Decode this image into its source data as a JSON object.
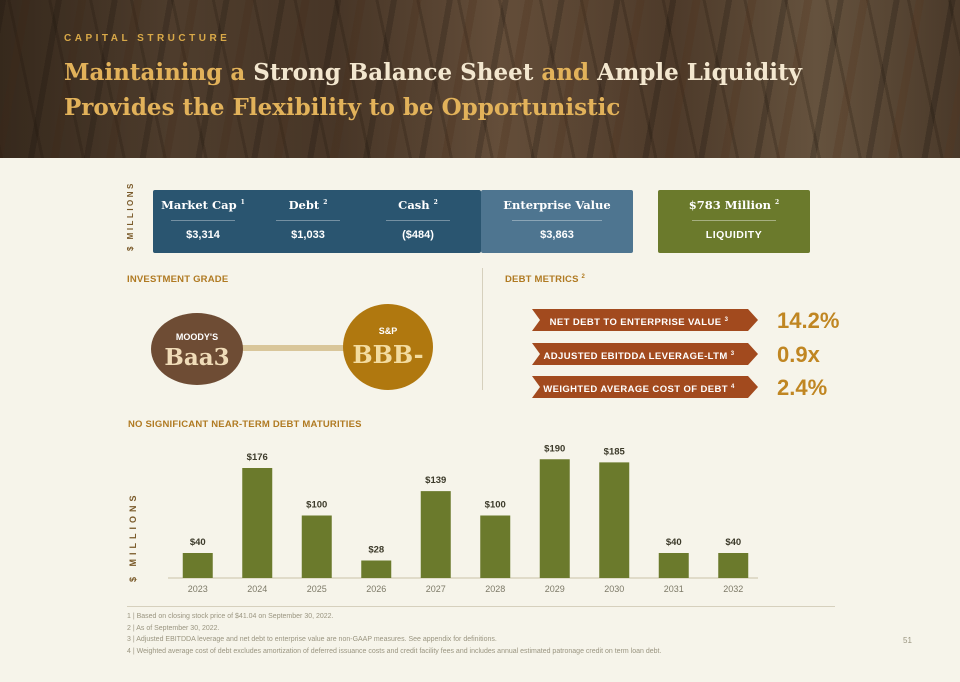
{
  "header": {
    "eyebrow": "CAPITAL STRUCTURE",
    "title_part1": "Maintaining a ",
    "title_part2": "Strong Balance Sheet",
    "title_part3": " and ",
    "title_part4": "Ample Liquidity",
    "title_line2": "Provides the Flexibility to be Opportunistic"
  },
  "cap_structure": {
    "unit_label": "$ MILLIONS",
    "items": [
      {
        "label": "Market Cap",
        "note": "1",
        "value": "$3,314"
      },
      {
        "label": "Debt",
        "note": "2",
        "value": "$1,033"
      },
      {
        "label": "Cash",
        "note": "2",
        "value": "($484)"
      },
      {
        "label": "Enterprise Value",
        "note": "",
        "value": "$3,863"
      }
    ],
    "liquidity": {
      "label": "$783 Million",
      "note": "2",
      "value": "LIQUIDITY"
    }
  },
  "investment_grade": {
    "title": "INVESTMENT GRADE",
    "moodys": {
      "agency": "MOODY'S",
      "grade": "Baa3"
    },
    "sp": {
      "agency": "S&P",
      "grade": "BBB-"
    }
  },
  "debt_metrics": {
    "title": "DEBT METRICS",
    "note": "2",
    "items": [
      {
        "label": "NET DEBT TO ENTERPRISE VALUE",
        "note": "3",
        "value": "14.2%"
      },
      {
        "label": "ADJUSTED EBITDDA LEVERAGE-LTM",
        "note": "3",
        "value": "0.9x"
      },
      {
        "label": "WEIGHTED AVERAGE COST OF DEBT",
        "note": "4",
        "value": "2.4%"
      }
    ]
  },
  "colors": {
    "bar": "#6b7a2c",
    "navy": "#2a5570",
    "steel": "#4e7590",
    "olive": "#6b7a2c",
    "brown": "#6e4c34",
    "gold": "#b0780f",
    "arrow": "#a24a1e",
    "accent": "#c08622"
  },
  "chart_data": {
    "type": "bar",
    "title": "NO SIGNIFICANT NEAR-TERM DEBT MATURITIES",
    "ylabel": "$ MILLIONS",
    "xlabel": "",
    "categories": [
      "2023",
      "2024",
      "2025",
      "2026",
      "2027",
      "2028",
      "2029",
      "2030",
      "2031",
      "2032"
    ],
    "values": [
      40,
      176,
      100,
      28,
      139,
      100,
      190,
      185,
      40,
      40
    ],
    "value_labels": [
      "$40",
      "$176",
      "$100",
      "$28",
      "$139",
      "$100",
      "$190",
      "$185",
      "$40",
      "$40"
    ],
    "ylim": [
      0,
      200
    ],
    "grid": false
  },
  "footnotes": [
    "1 | Based on closing stock price of $41.04 on September 30, 2022.",
    "2 | As of September 30, 2022.",
    "3 | Adjusted EBITDDA leverage and net debt to enterprise value are non-GAAP measures. See appendix for definitions.",
    "4 | Weighted average cost of debt excludes amortization of deferred issuance costs and credit facility fees and includes annual estimated patronage credit on term loan debt."
  ],
  "page_number": "51"
}
